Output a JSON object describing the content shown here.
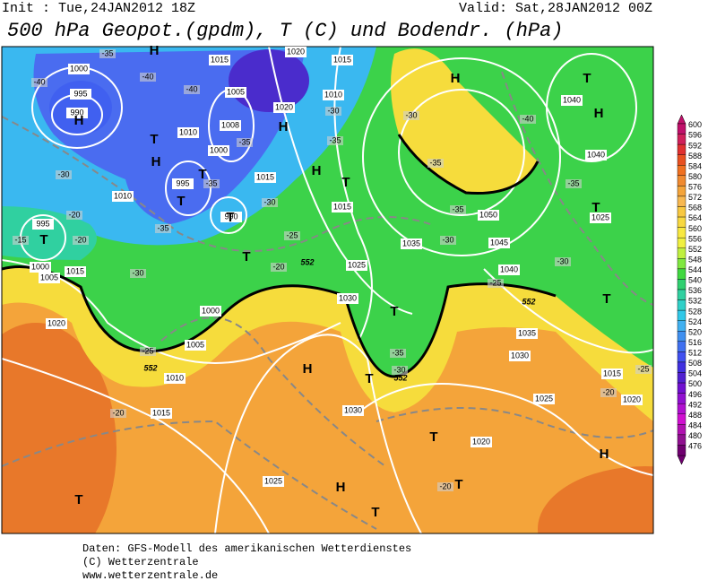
{
  "header": {
    "init": "Init : Tue,24JAN2012 18Z",
    "valid": "Valid: Sat,28JAN2012 00Z",
    "title": "500 hPa Geopot.(gpdm), T (C) und Bodendr. (hPa)"
  },
  "map": {
    "pressure_labels": [
      "1000",
      "995",
      "990",
      "1015",
      "1020",
      "1015",
      "1005",
      "1010",
      "1020",
      "1010",
      "1008",
      "1000",
      "995",
      "990",
      "1015",
      "1015",
      "1010",
      "995",
      "1000",
      "1005",
      "1015",
      "1000",
      "1005",
      "1010",
      "1015",
      "1020",
      "1025",
      "1030",
      "1030",
      "1025",
      "1035",
      "1050",
      "1045",
      "1040",
      "1035",
      "1030",
      "1025",
      "1020",
      "1015",
      "1020",
      "1040",
      "1040",
      "1025"
    ],
    "temperature_labels": [
      "-40",
      "-35",
      "-40",
      "-40",
      "-35",
      "-35",
      "-30",
      "-35",
      "-25",
      "-20",
      "-30",
      "-25",
      "-20",
      "-35",
      "-30",
      "-35",
      "-35",
      "-30",
      "-25",
      "-30",
      "-40",
      "-35",
      "-30",
      "-25",
      "-20",
      "-20",
      "-30",
      "-35",
      "-30",
      "-20",
      "-15",
      "-20"
    ],
    "contour_labels": [
      "552",
      "552",
      "552",
      "552"
    ],
    "highs": [
      "H",
      "H",
      "H",
      "H",
      "H",
      "H",
      "H",
      "H",
      "H",
      "H"
    ],
    "lows": [
      "T",
      "T",
      "T",
      "T",
      "T",
      "T",
      "T",
      "T",
      "T",
      "T",
      "T",
      "T",
      "T",
      "T",
      "T",
      "T"
    ]
  },
  "colorbar": {
    "levels": [
      600,
      596,
      592,
      588,
      584,
      580,
      576,
      572,
      568,
      564,
      560,
      556,
      552,
      548,
      544,
      540,
      536,
      532,
      528,
      524,
      520,
      516,
      512,
      508,
      504,
      500,
      496,
      492,
      488,
      484,
      480,
      476
    ],
    "colors": [
      "#c0106a",
      "#d0205a",
      "#e03030",
      "#e85020",
      "#f07020",
      "#f08a30",
      "#f4a43a",
      "#f8b850",
      "#f8c840",
      "#f8d840",
      "#f8e840",
      "#f0f040",
      "#c0f040",
      "#80e840",
      "#40d840",
      "#30d070",
      "#30d0a0",
      "#30d0c8",
      "#30c8e8",
      "#40b0f0",
      "#4090f0",
      "#4070f0",
      "#4050f0",
      "#4030e0",
      "#5020d0",
      "#7010d0",
      "#9010d0",
      "#b010d0",
      "#d010d0",
      "#b010b0",
      "#901090",
      "#700070"
    ]
  },
  "footer": [
    "Daten: GFS-Modell des amerikanischen Wetterdienstes",
    "(C) Wetterzentrale",
    "www.wetterzentrale.de"
  ]
}
